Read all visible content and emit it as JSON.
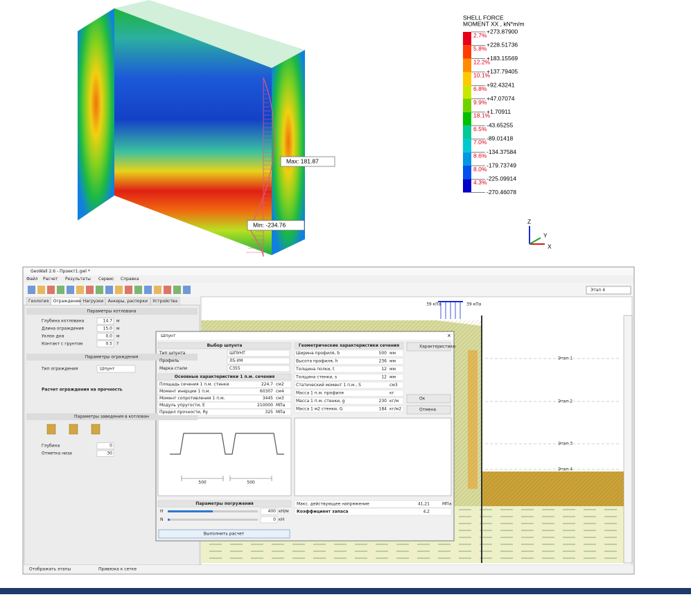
{
  "plot": {
    "max_label": "Max: 181.87",
    "min_label": "Min: -234.76"
  },
  "legend": {
    "title": "SHELL FORCE",
    "subtitle": "MOMENT XX , kN*m/m",
    "values": [
      "+273.87900",
      "+228.51736",
      "+183.15569",
      "+137.79405",
      "+92.43241",
      "+47.07074",
      "+1.70911",
      "-43.65255",
      "-89.01418",
      "-134.37584",
      "-179.73749",
      "-225.09914",
      "-270.46078"
    ],
    "percents": [
      "2.7%",
      "5.8%",
      "12.2%",
      "10.1%",
      "6.8%",
      "9.9%",
      "18.1%",
      "6.5%",
      "7.0%",
      "8.6%",
      "8.0%",
      "4.3%"
    ]
  },
  "axes": {
    "z": "Z",
    "y": "Y",
    "x": "X"
  },
  "window": {
    "title": "GeoWall 2.6 - Проект1.gwl *",
    "menu": [
      "Файл",
      "Расчет",
      "Результаты",
      "Сервис",
      "Справка"
    ],
    "stage_select": "Этап 4",
    "tabs": [
      "Геология",
      "Ограждение",
      "Нагрузки",
      "Анкеры, распорки",
      "Устройства"
    ],
    "section_pit": "Параметры котлована",
    "pit_fields": [
      {
        "label": "Глубина котлована",
        "value": "14.7",
        "unit": "м"
      },
      {
        "label": "Длина ограждения",
        "value": "15.0",
        "unit": "м"
      },
      {
        "label": "Уклон дна",
        "value": "0.0",
        "unit": "м"
      },
      {
        "label": "Контакт с грунтом",
        "value": "0.5",
        "unit": "?"
      }
    ],
    "section_wall": "Параметры ограждения",
    "wall_type_label": "Тип ограждения",
    "wall_type_value": "Шпунт",
    "wall_check": "Расчет ограждения на прочность",
    "section_embed": "Параметры заведения в котлован",
    "embed_fields": [
      {
        "label": "Глубина",
        "value": "0"
      },
      {
        "label": "Отметка низа",
        "value": "30"
      }
    ],
    "status": [
      "Отображать этапы",
      "Привязка к сетке"
    ],
    "stages": [
      "Этап 1",
      "Этап 2",
      "Этап 3",
      "Этап 4"
    ],
    "load_labels": [
      "39 кПа",
      "39 кПа"
    ],
    "dialog": {
      "title": "Шпунт",
      "pick_header": "Выбор шпунта",
      "pick_rows": [
        {
          "label": "Тип шпунта",
          "value": "ШПУНТ"
        },
        {
          "label": "Профиль",
          "value": "Л5-УМ"
        },
        {
          "label": "Марка стали",
          "value": "С355"
        }
      ],
      "props_header": "Основные характеристики 1 п.м. сечения",
      "props_rows": [
        {
          "label": "Площадь сечения 1 п.м. стенки",
          "value": "224.7",
          "unit": "см2"
        },
        {
          "label": "Момент инерции 1 п.м.",
          "value": "60307",
          "unit": "см4"
        },
        {
          "label": "Момент сопротивления 1 п.м.",
          "value": "3445",
          "unit": "см3"
        },
        {
          "label": "Модуль упругости, E",
          "value": "210000",
          "unit": "МПа"
        },
        {
          "label": "Предел прочности, Ry",
          "value": "325",
          "unit": "МПа"
        }
      ],
      "section_header": "Геометрические характеристики сечения",
      "section_rows": [
        {
          "label": "Ширина профиля, b",
          "value": "500",
          "unit": "мм"
        },
        {
          "label": "Высота профиля, h",
          "value": "236",
          "unit": "мм"
        },
        {
          "label": "Толщина полки, t",
          "value": "12",
          "unit": "мм"
        },
        {
          "label": "Толщина стенки, s",
          "value": "12",
          "unit": "мм"
        },
        {
          "label": "Статический момент 1 п.м., S",
          "value": "",
          "unit": "см3"
        },
        {
          "label": "Масса 1 п.м. профиля",
          "value": "",
          "unit": "кг"
        },
        {
          "label": "Масса 1 п.м. стенки, g",
          "value": "230",
          "unit": "кг/м"
        },
        {
          "label": "Масса 1 м2 стенки, G",
          "value": "184",
          "unit": "кг/м2"
        }
      ],
      "dims": [
        "500",
        "500"
      ],
      "buttons": [
        "Характеристики",
        "Ок",
        "Отмена"
      ],
      "drive_header": "Параметры погружения",
      "drive_rows": [
        {
          "label": "H",
          "value": "400",
          "unit": "кН/м"
        },
        {
          "label": "N",
          "value": "0",
          "unit": "кН"
        }
      ],
      "drive_button": "Выполнить расчет",
      "stress_label": "Макс. действующее напряжение",
      "stress_value": "41,21",
      "stress_unit": "МПа",
      "safety_label": "Коэффициент запаса",
      "safety_value": "4,2"
    }
  }
}
